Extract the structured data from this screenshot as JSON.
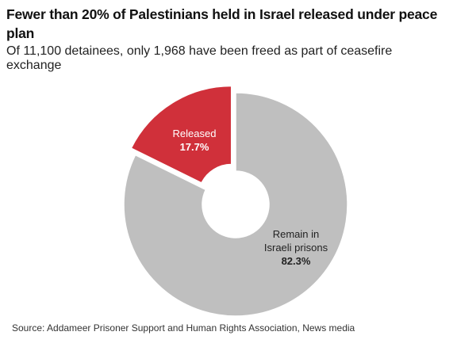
{
  "header": {
    "title": "Fewer than 20% of Palestinians held in Israel released under peace plan",
    "subtitle": "Of 11,100 detainees, only 1,968 have been freed as part of ceasefire exchange"
  },
  "chart_data": {
    "type": "pie",
    "donut": true,
    "title": "Fewer than 20% of Palestinians held in Israel released under peace plan",
    "subtitle": "Of 11,100 detainees, only 1,968 have been freed as part of ceasefire exchange",
    "slices": [
      {
        "label": "Released",
        "value": 17.7,
        "value_label": "17.7%",
        "color": "#d0303a",
        "text_color": "#ffffff",
        "exploded": true
      },
      {
        "label": "Remain in Israeli prisons",
        "label_lines": [
          "Remain in",
          "Israeli prisons"
        ],
        "value": 82.3,
        "value_label": "82.3%",
        "color": "#bfbfbf",
        "text_color": "#222222",
        "exploded": false
      }
    ],
    "legend": "none"
  },
  "footer": {
    "source": "Source: Addameer Prisoner Support and Human Rights Association, News media"
  }
}
